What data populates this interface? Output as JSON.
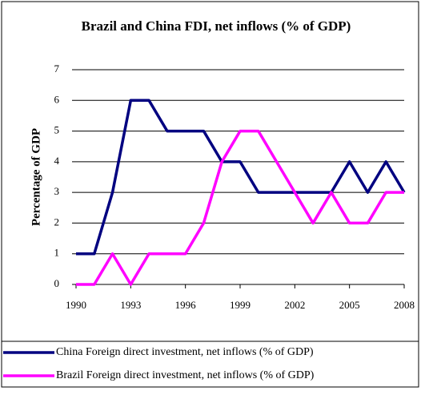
{
  "chart_data": {
    "type": "line",
    "title": "Brazil and China FDI, net inflows (% of GDP)",
    "y_label": "Percentage of GDP",
    "x": [
      1990,
      1991,
      1992,
      1993,
      1994,
      1995,
      1996,
      1997,
      1998,
      1999,
      2000,
      2001,
      2002,
      2003,
      2004,
      2005,
      2006,
      2007,
      2008
    ],
    "xlim": [
      1990,
      2008
    ],
    "xticks": [
      1990,
      1993,
      1996,
      1999,
      2002,
      2005,
      2008
    ],
    "ylim": [
      0,
      7
    ],
    "yticks": [
      0,
      1,
      2,
      3,
      4,
      5,
      6,
      7
    ],
    "grid": true,
    "legend": "bottom",
    "series": [
      {
        "name": "China Foreign direct investment, net inflows (% of GDP)",
        "color": "#000080",
        "values": [
          1,
          1,
          3,
          6,
          6,
          5,
          5,
          5,
          4,
          4,
          3,
          3,
          3,
          3,
          3,
          4,
          3,
          4,
          3
        ]
      },
      {
        "name": "Brazil Foreign direct investment, net inflows (% of GDP)",
        "color": "#ff00ff",
        "values": [
          0,
          0,
          1,
          0,
          1,
          1,
          1,
          2,
          4,
          5,
          5,
          4,
          3,
          2,
          3,
          2,
          2,
          3,
          3
        ]
      }
    ]
  }
}
